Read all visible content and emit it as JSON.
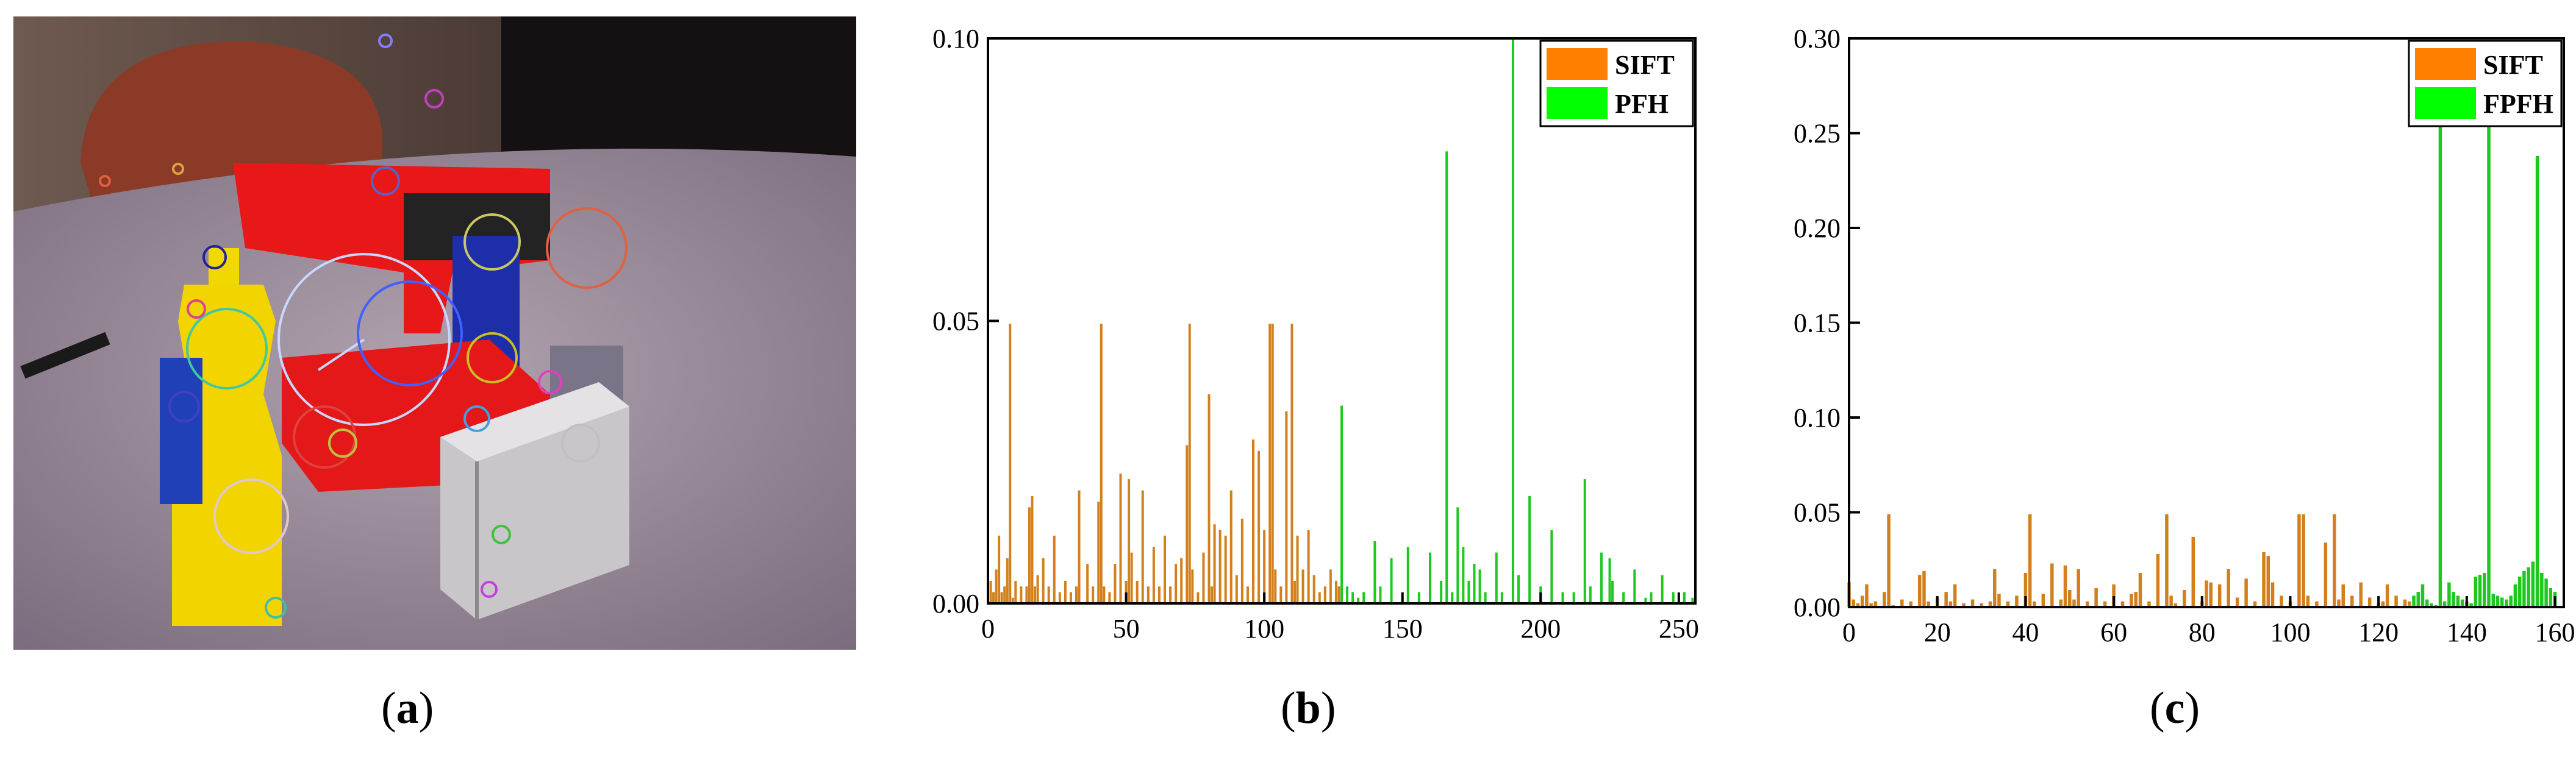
{
  "captions": {
    "a": "a",
    "b": "b",
    "c": "c"
  },
  "colors": {
    "sift": "#ff8000",
    "pfh": "#00ff00",
    "sift_bar": "#d2801e",
    "pfh_bar": "#1ec81e"
  },
  "chart_data": [
    {
      "type": "bar",
      "xlim": [
        0,
        256
      ],
      "ylim": [
        0,
        0.1
      ],
      "xticks": [
        "0",
        "50",
        "100",
        "150",
        "200",
        "250"
      ],
      "yticks": [
        "0.00",
        "0.05",
        "0.10"
      ],
      "grid": false,
      "legend_position": "top-right",
      "series": [
        {
          "name": "SIFT",
          "x": [
            0,
            1,
            2,
            3,
            4,
            5,
            6,
            7,
            8,
            9,
            10,
            12,
            14,
            15,
            16,
            17,
            18,
            20,
            22,
            24,
            26,
            28,
            30,
            32,
            33,
            36,
            38,
            40,
            41,
            42,
            44,
            46,
            48,
            50,
            51,
            52,
            54,
            56,
            58,
            60,
            62,
            64,
            66,
            68,
            70,
            72,
            73,
            74,
            76,
            78,
            80,
            81,
            82,
            84,
            86,
            88,
            90,
            92,
            94,
            96,
            98,
            100,
            102,
            103,
            104,
            106,
            108,
            110,
            111,
            112,
            114,
            116,
            118,
            120,
            122,
            124,
            126,
            127
          ],
          "values": [
            0.013,
            0.004,
            0.002,
            0.006,
            0.012,
            0.002,
            0.003,
            0.008,
            0.0495,
            0.001,
            0.004,
            0.003,
            0.003,
            0.017,
            0.019,
            0.003,
            0.005,
            0.008,
            0.003,
            0.012,
            0.002,
            0.004,
            0.002,
            0.003,
            0.02,
            0.007,
            0.003,
            0.018,
            0.0495,
            0.003,
            0.002,
            0.007,
            0.023,
            0.004,
            0.022,
            0.009,
            0.004,
            0.02,
            0.003,
            0.01,
            0.003,
            0.012,
            0.003,
            0.007,
            0.008,
            0.028,
            0.0495,
            0.006,
            0.002,
            0.009,
            0.037,
            0.003,
            0.014,
            0.013,
            0.012,
            0.02,
            0.005,
            0.015,
            0.003,
            0.029,
            0.027,
            0.013,
            0.0495,
            0.0495,
            0.006,
            0.003,
            0.034,
            0.0495,
            0.004,
            0.012,
            0.006,
            0.013,
            0.005,
            0.002,
            0.003,
            0.006,
            0.004,
            0.003
          ]
        },
        {
          "name": "PFH",
          "x": [
            128,
            130,
            132,
            134,
            136,
            140,
            142,
            146,
            150,
            152,
            156,
            160,
            164,
            166,
            168,
            170,
            172,
            174,
            176,
            178,
            180,
            184,
            186,
            190,
            192,
            196,
            200,
            204,
            208,
            212,
            216,
            218,
            222,
            225,
            226,
            230,
            234,
            238,
            240,
            244,
            248,
            252,
            255
          ],
          "values": [
            0.035,
            0.003,
            0.002,
            0.001,
            0.002,
            0.011,
            0.003,
            0.008,
            0.002,
            0.01,
            0.002,
            0.009,
            0.004,
            0.08,
            0.002,
            0.017,
            0.01,
            0.004,
            0.007,
            0.006,
            0.002,
            0.009,
            0.002,
            0.1,
            0.005,
            0.019,
            0.003,
            0.013,
            0.002,
            0.002,
            0.022,
            0.003,
            0.009,
            0.008,
            0.004,
            0.002,
            0.006,
            0.001,
            0.002,
            0.005,
            0.002,
            0.002,
            0.001
          ]
        }
      ]
    },
    {
      "type": "bar",
      "xlim": [
        0,
        162
      ],
      "ylim": [
        0,
        0.3
      ],
      "xticks": [
        "0",
        "20",
        "40",
        "60",
        "80",
        "100",
        "120",
        "140",
        "160"
      ],
      "yticks": [
        "0.00",
        "0.05",
        "0.10",
        "0.15",
        "0.20",
        "0.25",
        "0.30"
      ],
      "grid": false,
      "legend_position": "top-right",
      "series": [
        {
          "name": "SIFT",
          "x": [
            0,
            1,
            2,
            3,
            4,
            5,
            6,
            8,
            9,
            10,
            12,
            14,
            16,
            17,
            18,
            20,
            22,
            23,
            24,
            26,
            28,
            30,
            32,
            33,
            34,
            36,
            38,
            40,
            41,
            42,
            44,
            46,
            48,
            49,
            50,
            51,
            52,
            54,
            56,
            58,
            60,
            62,
            64,
            65,
            66,
            68,
            70,
            72,
            73,
            74,
            76,
            78,
            80,
            81,
            82,
            84,
            86,
            88,
            90,
            92,
            94,
            95,
            96,
            98,
            100,
            102,
            103,
            104,
            106,
            108,
            110,
            111,
            112,
            114,
            116,
            118,
            120,
            121,
            122,
            124,
            126,
            127
          ],
          "values": [
            0.013,
            0.004,
            0.002,
            0.006,
            0.012,
            0.002,
            0.003,
            0.008,
            0.049,
            0.001,
            0.004,
            0.003,
            0.017,
            0.019,
            0.003,
            0.005,
            0.008,
            0.003,
            0.012,
            0.002,
            0.004,
            0.002,
            0.003,
            0.02,
            0.007,
            0.003,
            0.006,
            0.018,
            0.049,
            0.003,
            0.007,
            0.023,
            0.004,
            0.022,
            0.009,
            0.004,
            0.02,
            0.003,
            0.01,
            0.003,
            0.012,
            0.003,
            0.007,
            0.008,
            0.018,
            0.003,
            0.028,
            0.049,
            0.006,
            0.002,
            0.009,
            0.037,
            0.003,
            0.014,
            0.013,
            0.012,
            0.02,
            0.005,
            0.015,
            0.003,
            0.029,
            0.027,
            0.013,
            0.006,
            0.003,
            0.049,
            0.049,
            0.006,
            0.003,
            0.034,
            0.049,
            0.004,
            0.012,
            0.006,
            0.013,
            0.005,
            0.002,
            0.003,
            0.012,
            0.006,
            0.004,
            0.003
          ]
        },
        {
          "name": "FPFH",
          "x": [
            128,
            129,
            130,
            131,
            132,
            133,
            134,
            135,
            136,
            137,
            138,
            139,
            140,
            141,
            142,
            143,
            144,
            145,
            146,
            147,
            148,
            149,
            150,
            151,
            152,
            153,
            154,
            155,
            156,
            157,
            158,
            159,
            160
          ],
          "values": [
            0.006,
            0.008,
            0.012,
            0.004,
            0.002,
            0.001,
            0.296,
            0.003,
            0.013,
            0.008,
            0.006,
            0.004,
            0.003,
            0.002,
            0.016,
            0.017,
            0.018,
            0.259,
            0.007,
            0.006,
            0.005,
            0.004,
            0.006,
            0.012,
            0.016,
            0.019,
            0.021,
            0.024,
            0.238,
            0.018,
            0.015,
            0.01,
            0.008
          ]
        }
      ]
    }
  ]
}
